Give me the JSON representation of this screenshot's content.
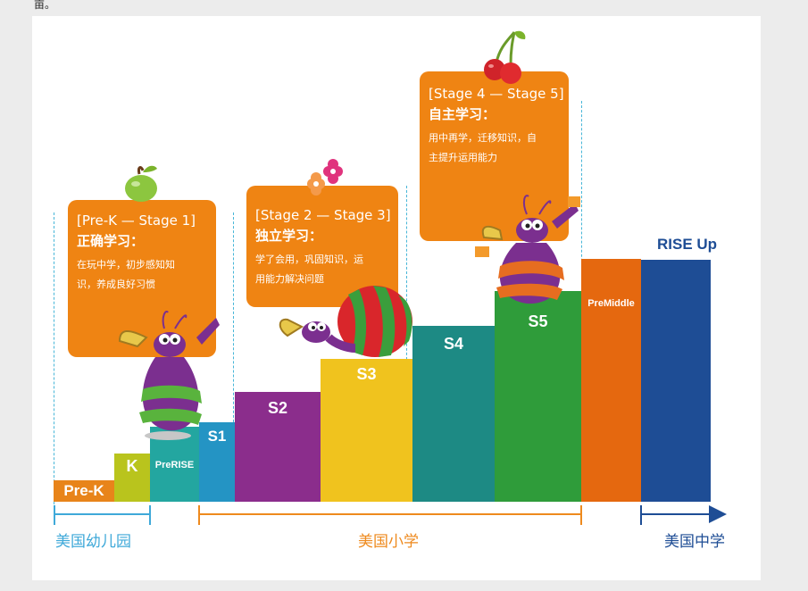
{
  "header_glyph": "亩。",
  "stages": [
    {
      "label": "Pre-K",
      "color": "#e8841a"
    },
    {
      "label": "K",
      "color": "#b9c41d"
    },
    {
      "label": "PreRISE",
      "color": "#23a6a0"
    },
    {
      "label": "S1",
      "color": "#2494c4"
    },
    {
      "label": "S2",
      "color": "#8b2d8c"
    },
    {
      "label": "S3",
      "color": "#f0c31e"
    },
    {
      "label": "S4",
      "color": "#1d8a84"
    },
    {
      "label": "S5",
      "color": "#2f9c3a"
    },
    {
      "label": "PreMiddle",
      "color": "#e5680f"
    },
    {
      "label": "RISE Up",
      "color": "#1e4d95"
    }
  ],
  "callouts": [
    {
      "title": "[Pre-K — Stage 1]",
      "subtitle": "正确学习：",
      "desc_line1": "在玩中学，初步感知知",
      "desc_line2": "识，养成良好习惯"
    },
    {
      "title": "[Stage 2 — Stage 3]",
      "subtitle": "独立学习：",
      "desc_line1": "学了会用，巩固知识，运",
      "desc_line2": "用能力解决问题"
    },
    {
      "title": "[Stage 4 — Stage 5]",
      "subtitle": "自主学习：",
      "desc_line1": "用中再学，迁移知识，自",
      "desc_line2": "主提升运用能力"
    }
  ],
  "school_levels": [
    {
      "label": "美国幼儿园",
      "color": "#3fa9d9"
    },
    {
      "label": "美国小学",
      "color": "#ee8a1e"
    },
    {
      "label": "美国中学",
      "color": "#1e4d95"
    }
  ]
}
